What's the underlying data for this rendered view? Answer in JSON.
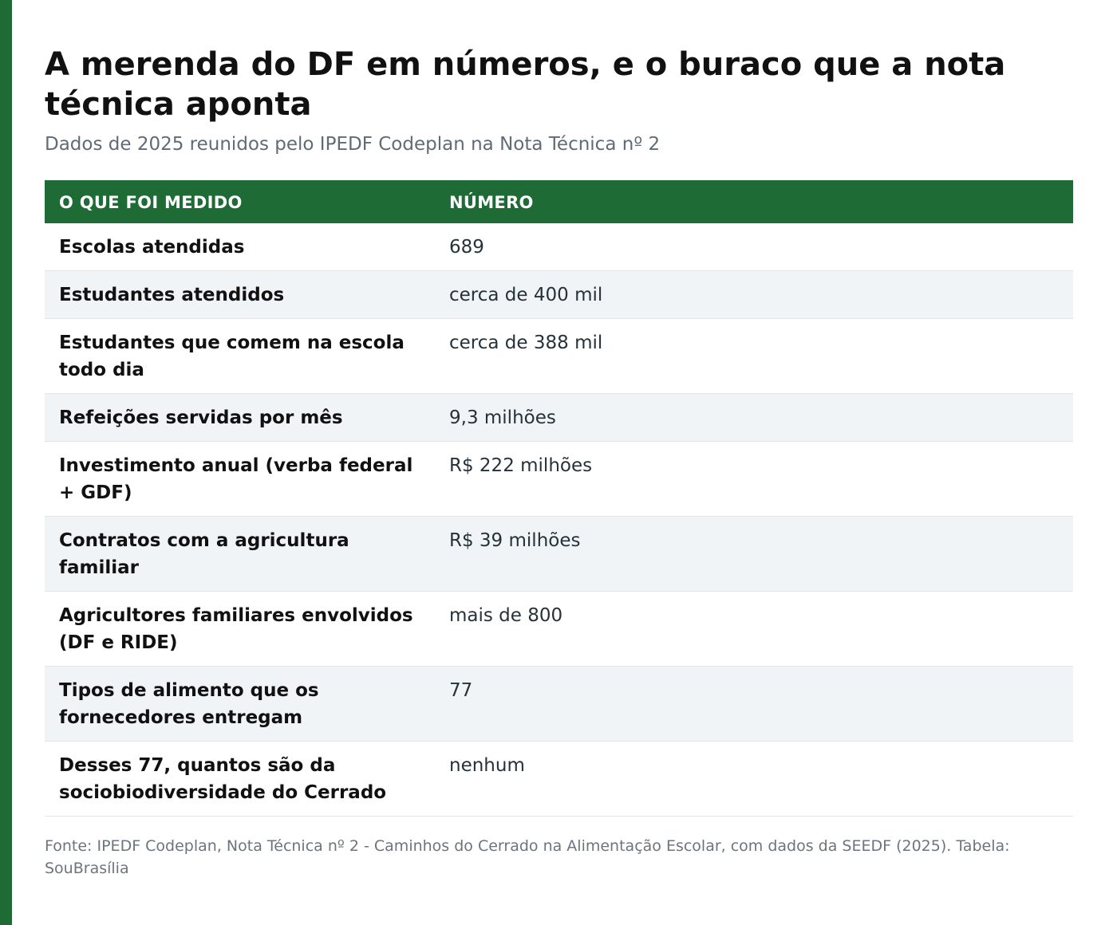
{
  "article": {
    "title": "A merenda do DF em números, e o buraco que a nota técnica aponta",
    "subtitle": "Dados de 2025 reunidos pelo IPEDF Codeplan na Nota Técnica nº 2"
  },
  "table": {
    "headers": [
      "O QUE FOI MEDIDO",
      "NÚMERO"
    ],
    "rows": [
      {
        "label": "Escolas atendidas",
        "value": "689"
      },
      {
        "label": "Estudantes atendidos",
        "value": "cerca de 400 mil"
      },
      {
        "label": "Estudantes que comem na escola todo dia",
        "value": "cerca de 388 mil"
      },
      {
        "label": "Refeições servidas por mês",
        "value": "9,3 milhões"
      },
      {
        "label": "Investimento anual (verba federal + GDF)",
        "value": "R$ 222 milhões"
      },
      {
        "label": "Contratos com a agricultura familiar",
        "value": "R$ 39 milhões"
      },
      {
        "label": "Agricultores familiares envolvidos (DF e RIDE)",
        "value": "mais de 800"
      },
      {
        "label": "Tipos de alimento que os fornecedores entregam",
        "value": "77"
      },
      {
        "label": "Desses 77, quantos são da sociobiodiversidade do Cerrado",
        "value": "nenhum"
      }
    ]
  },
  "footnote": "Fonte: IPEDF Codeplan, Nota Técnica nº 2 - Caminhos do Cerrado na Alimentação Escolar, com dados da SEEDF (2025). Tabela: SouBrasília",
  "colors": {
    "accent": "#1e6b35",
    "row_alt": "#f0f4f7",
    "muted_text": "#5f6b75"
  }
}
